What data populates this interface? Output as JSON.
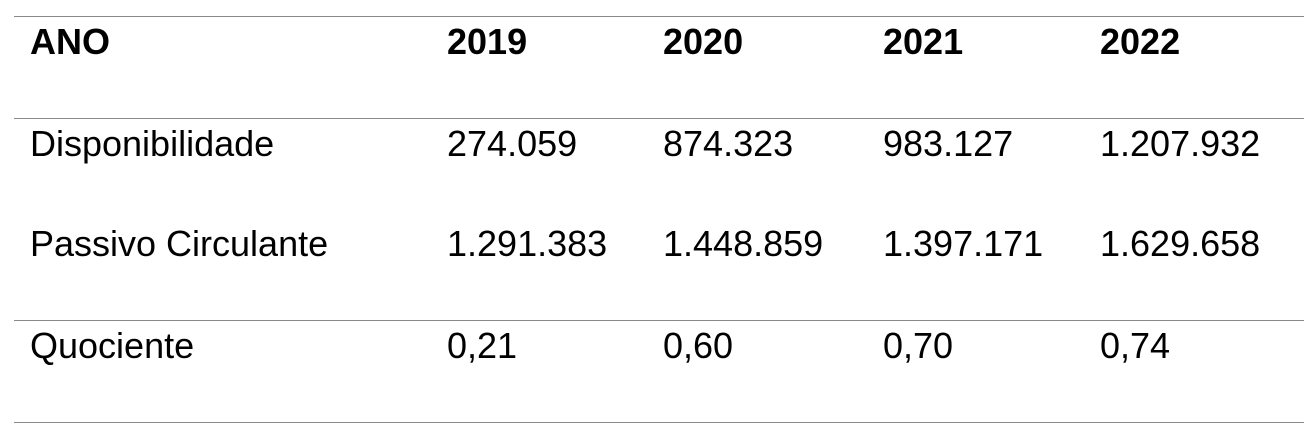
{
  "table": {
    "headers": [
      "ANO",
      "2019",
      "2020",
      "2021",
      "2022"
    ],
    "rows": [
      [
        "Disponibilidade",
        "274.059",
        "874.323",
        "983.127",
        "1.207.932"
      ],
      [
        "Passivo Circulante",
        "1.291.383",
        "1.448.859",
        "1.397.171",
        "1.629.658"
      ],
      [
        "Quociente",
        "0,21",
        "0,60",
        "0,70",
        "0,74"
      ]
    ]
  }
}
